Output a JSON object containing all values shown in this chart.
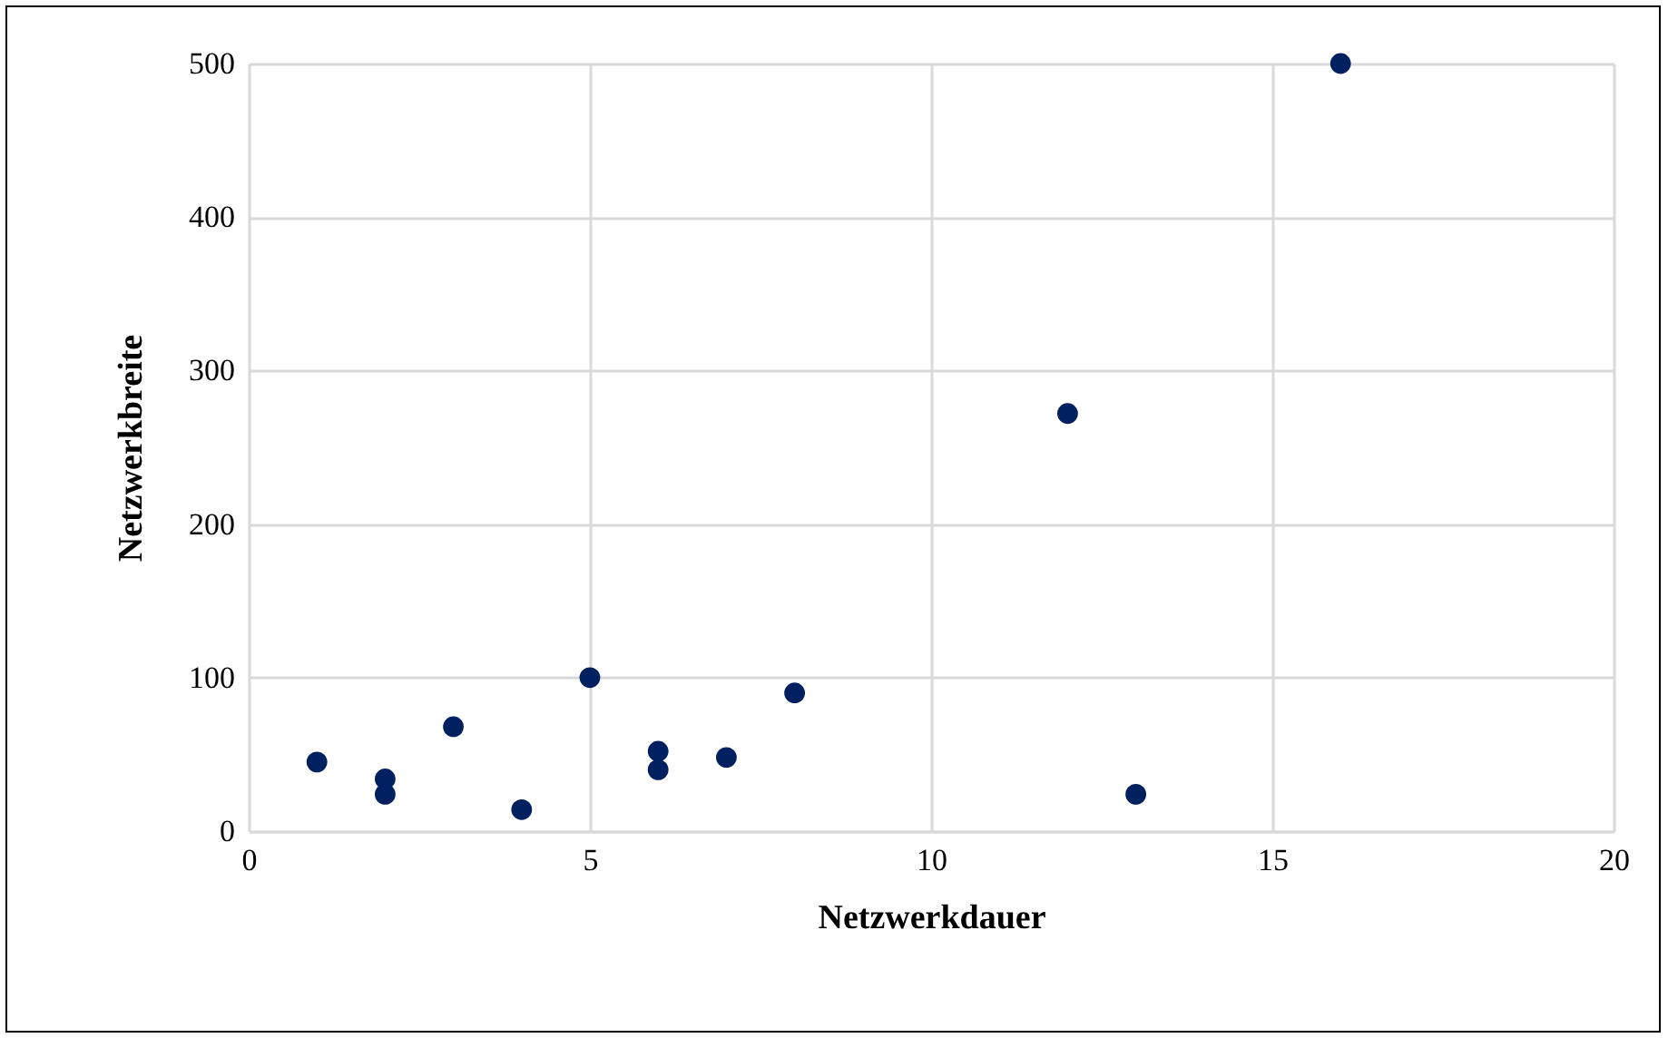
{
  "chart_data": {
    "type": "scatter",
    "xlabel": "Netzwerkdauer",
    "ylabel": "Netzwerkbreite",
    "x": [
      1,
      2,
      2,
      3,
      4,
      5,
      6,
      6,
      7,
      8,
      12,
      13,
      16
    ],
    "series": [
      {
        "color": "#002060",
        "values": [
          45,
          34,
          24,
          68,
          14,
          100,
          52,
          40,
          48,
          90,
          272,
          24,
          500
        ]
      }
    ],
    "xlim": [
      0,
      20
    ],
    "xticks": [
      0,
      5,
      10,
      15,
      20
    ],
    "ylim": [
      0,
      500
    ],
    "yticks": [
      0,
      100,
      200,
      300,
      400,
      500
    ],
    "grid": true,
    "marker": "circle"
  }
}
